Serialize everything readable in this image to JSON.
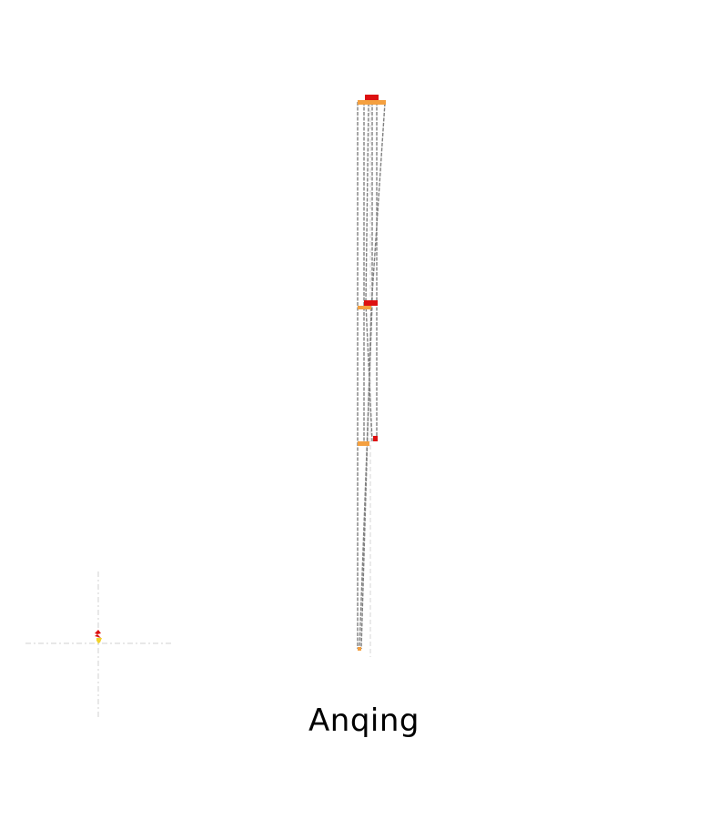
{
  "caption": "Anqing",
  "colors": {
    "background": "#ffffff",
    "connector": "#808080",
    "guide": "#d0d0d0",
    "orange_marker": "#f4a040",
    "red_marker": "#dd1111",
    "yellow_marker": "#f2d22a"
  }
}
